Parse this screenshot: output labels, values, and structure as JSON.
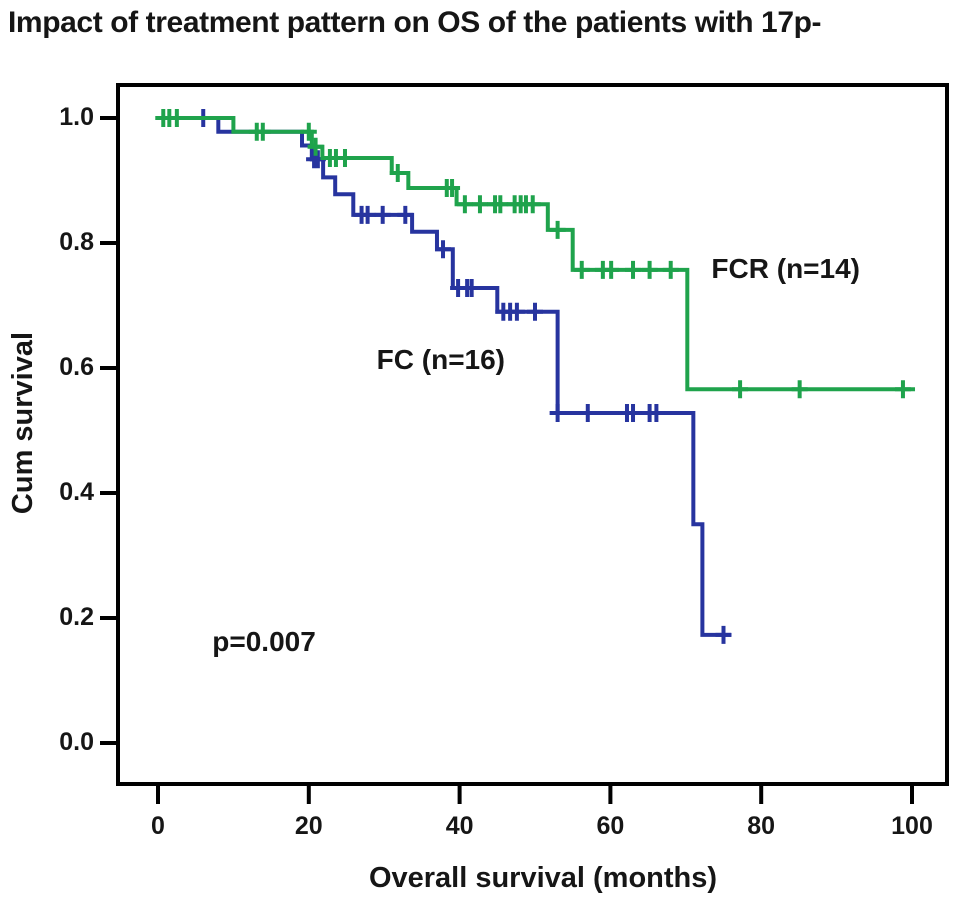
{
  "title": "Impact of treatment pattern on OS of the patients with 17p-",
  "chart_data": {
    "type": "line",
    "subtype": "kaplan_meier_step_curve",
    "title": "Impact of treatment pattern on OS of the patients with 17p-",
    "xlabel": "Overall survival (months)",
    "ylabel": "Cum survival",
    "xlim": [
      0,
      104
    ],
    "ylim": [
      0.0,
      1.0
    ],
    "grid": false,
    "legend": "inline-labels",
    "xticks": [
      "0",
      "20",
      "40",
      "60",
      "80",
      "100"
    ],
    "xtick_values": [
      0,
      20,
      40,
      60,
      80,
      100
    ],
    "yticks": [
      "1.0",
      "0.8",
      "0.6",
      "0.4",
      "0.2",
      "0.0"
    ],
    "ytick_values": [
      1.0,
      0.8,
      0.6,
      0.4,
      0.2,
      0.0
    ],
    "annotations": [
      {
        "text": "p=0.007",
        "x_months": 7.2,
        "y_survival": 0.165
      }
    ],
    "frame_color": "#000000",
    "series": [
      {
        "name": "FC",
        "label": "FC (n=16)",
        "n": 16,
        "color": "#27349f",
        "label_anchor": {
          "x_months": 29.0,
          "y_survival": 0.613
        },
        "steps": [
          [
            0,
            1.0
          ],
          [
            8,
            0.978
          ],
          [
            19.1,
            0.956
          ],
          [
            20.4,
            0.934
          ],
          [
            21.9,
            0.905
          ],
          [
            23.5,
            0.878
          ],
          [
            25.9,
            0.845
          ],
          [
            33.7,
            0.818
          ],
          [
            37.0,
            0.79
          ],
          [
            39.1,
            0.728
          ],
          [
            45.0,
            0.69
          ],
          [
            53.0,
            0.528
          ],
          [
            71.0,
            0.35
          ],
          [
            72.2,
            0.173
          ]
        ],
        "end_month": 76,
        "censor_marks": [
          [
            6.0,
            1.0
          ],
          [
            20.7,
            0.934
          ],
          [
            21.2,
            0.934
          ],
          [
            27.0,
            0.845
          ],
          [
            27.8,
            0.845
          ],
          [
            29.8,
            0.845
          ],
          [
            32.8,
            0.845
          ],
          [
            37.8,
            0.79
          ],
          [
            39.8,
            0.728
          ],
          [
            41.0,
            0.728
          ],
          [
            41.6,
            0.728
          ],
          [
            45.8,
            0.69
          ],
          [
            46.7,
            0.69
          ],
          [
            47.6,
            0.69
          ],
          [
            50.0,
            0.69
          ],
          [
            53.0,
            0.528
          ],
          [
            57.0,
            0.528
          ],
          [
            62.2,
            0.528
          ],
          [
            63.0,
            0.528
          ],
          [
            65.2,
            0.528
          ],
          [
            66.1,
            0.528
          ],
          [
            75.0,
            0.173
          ]
        ]
      },
      {
        "name": "FCR",
        "label": "FCR (n=14)",
        "n": 14,
        "color": "#1fa34c",
        "label_anchor": {
          "x_months": 73.4,
          "y_survival": 0.758
        },
        "steps": [
          [
            0,
            1.0
          ],
          [
            10,
            0.978
          ],
          [
            20.4,
            0.954
          ],
          [
            21.8,
            0.936
          ],
          [
            31.0,
            0.912
          ],
          [
            33.2,
            0.888
          ],
          [
            39.6,
            0.862
          ],
          [
            51.7,
            0.821
          ],
          [
            55.0,
            0.757
          ],
          [
            70.2,
            0.566
          ]
        ],
        "end_month": 100.4,
        "censor_marks": [
          [
            0.7,
            1.0
          ],
          [
            1.5,
            1.0
          ],
          [
            2.5,
            1.0
          ],
          [
            13.1,
            0.978
          ],
          [
            13.9,
            0.978
          ],
          [
            20.0,
            0.978
          ],
          [
            20.9,
            0.954
          ],
          [
            22.8,
            0.936
          ],
          [
            23.6,
            0.936
          ],
          [
            24.8,
            0.936
          ],
          [
            31.8,
            0.912
          ],
          [
            38.3,
            0.888
          ],
          [
            39.0,
            0.888
          ],
          [
            40.7,
            0.862
          ],
          [
            42.7,
            0.862
          ],
          [
            44.7,
            0.862
          ],
          [
            45.4,
            0.862
          ],
          [
            47.3,
            0.862
          ],
          [
            48.1,
            0.862
          ],
          [
            48.8,
            0.862
          ],
          [
            49.7,
            0.862
          ],
          [
            53.0,
            0.821
          ],
          [
            56.2,
            0.757
          ],
          [
            59.0,
            0.757
          ],
          [
            60.1,
            0.757
          ],
          [
            63.0,
            0.757
          ],
          [
            65.2,
            0.757
          ],
          [
            68.0,
            0.757
          ],
          [
            77.2,
            0.566
          ],
          [
            85.1,
            0.566
          ],
          [
            98.8,
            0.566
          ]
        ]
      }
    ]
  }
}
